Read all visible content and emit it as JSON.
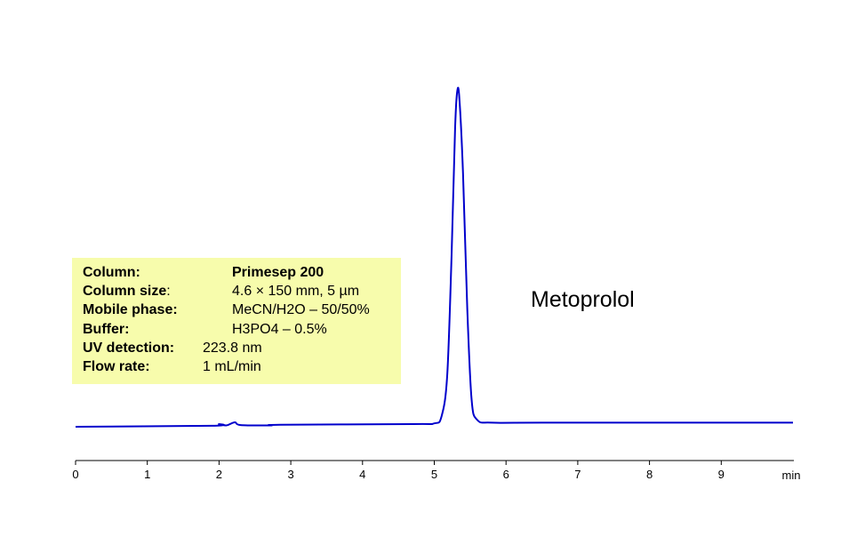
{
  "chart_data": {
    "type": "line",
    "title": "",
    "xlabel": "min",
    "ylabel": "",
    "xlim": [
      0,
      10
    ],
    "x_ticks": [
      0,
      1,
      2,
      3,
      4,
      5,
      6,
      7,
      8,
      9
    ],
    "x_unit_label": "min",
    "grid": false,
    "line_color": "#0000cc",
    "series": [
      {
        "baseline": 0.0,
        "x": [
          0,
          1.9,
          2.0,
          2.1,
          2.22,
          2.3,
          2.72,
          2.85,
          4.7,
          5.0,
          5.1,
          5.18,
          5.24,
          5.29,
          5.32,
          5.35,
          5.4,
          5.46,
          5.52,
          5.6,
          5.8,
          6.5,
          10
        ],
        "y": [
          0.0,
          0.003,
          0.008,
          0.004,
          0.013,
          0.005,
          0.004,
          0.006,
          0.008,
          0.01,
          0.03,
          0.15,
          0.5,
          0.88,
          0.99,
          0.97,
          0.75,
          0.35,
          0.08,
          0.02,
          0.012,
          0.012,
          0.012
        ]
      }
    ],
    "annotations": [
      {
        "text": "Metoprolol",
        "x": 5.3
      }
    ]
  },
  "info_box": {
    "background": "#f7fcac",
    "rows": [
      {
        "label": "Column:",
        "suffix": "",
        "value": "Primesep 200",
        "value_bold": true
      },
      {
        "label": "Column size",
        "suffix": ":",
        "value": "4.6 × 150 mm, 5 µm",
        "value_bold": false
      },
      {
        "label": "Mobile phase:",
        "suffix": "",
        "value": "MeCN/H2O – 50/50%",
        "value_bold": false
      },
      {
        "label": "Buffer:",
        "suffix": "",
        "value": "H3PO4 – 0.5%",
        "value_bold": false
      },
      {
        "label": "UV detection:",
        "suffix": "",
        "value": "223.8 nm",
        "value_bold": false
      },
      {
        "label": "Flow rate:",
        "suffix": "",
        "value": "1 mL/min",
        "value_bold": false
      }
    ]
  }
}
